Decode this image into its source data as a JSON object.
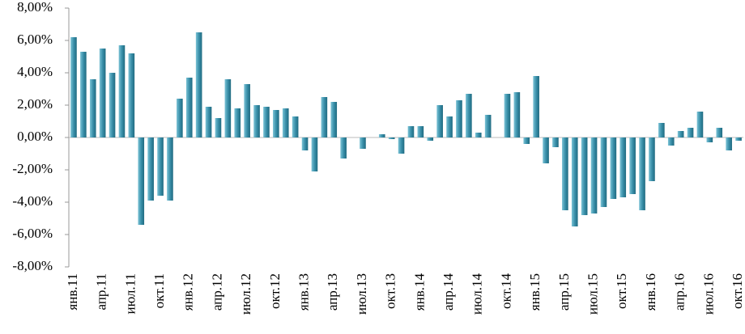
{
  "chart_data": {
    "type": "bar",
    "categories": [
      "янв.11",
      null,
      null,
      "апр.11",
      null,
      null,
      "июл.11",
      null,
      null,
      "окт.11",
      null,
      null,
      "янв.12",
      null,
      null,
      "апр.12",
      null,
      null,
      "июл.12",
      null,
      null,
      "окт.12",
      null,
      null,
      "янв.13",
      null,
      null,
      "апр.13",
      null,
      null,
      "июл.13",
      null,
      null,
      "окт.13",
      null,
      null,
      "янв.14",
      null,
      null,
      "апр.14",
      null,
      null,
      "июл.14",
      null,
      null,
      "окт.14",
      null,
      null,
      "янв.15",
      null,
      null,
      "апр.15",
      null,
      null,
      "июл.15",
      null,
      null,
      "окт.15",
      null,
      null,
      "янв.16",
      null,
      null,
      "апр.16",
      null,
      null,
      "июл.16",
      null,
      null,
      "окт.16"
    ],
    "values": [
      6.2,
      5.3,
      3.6,
      5.5,
      4.0,
      5.7,
      5.2,
      -5.4,
      -3.9,
      -3.6,
      -3.9,
      2.4,
      3.7,
      6.5,
      1.9,
      1.2,
      3.6,
      1.8,
      3.3,
      2.0,
      1.9,
      1.7,
      1.8,
      1.3,
      -0.8,
      -2.1,
      2.5,
      2.2,
      -1.3,
      0.0,
      -0.7,
      0.0,
      0.2,
      -0.1,
      -1.0,
      0.7,
      0.7,
      -0.2,
      2.0,
      1.3,
      2.3,
      2.7,
      0.3,
      1.4,
      0.0,
      2.7,
      2.8,
      -0.4,
      3.8,
      -1.6,
      -0.6,
      -4.5,
      -5.5,
      -4.8,
      -4.7,
      -4.3,
      -3.8,
      -3.7,
      -3.5,
      -4.5,
      -2.7,
      0.9,
      -0.5,
      0.4,
      0.6,
      1.6,
      -0.3,
      0.6,
      -0.8,
      -0.2
    ],
    "color": "#3a90aa",
    "ylim": [
      -8,
      8
    ],
    "yticks": [
      {
        "value": -8,
        "label": "-8,00%"
      },
      {
        "value": -6,
        "label": "-6,00%"
      },
      {
        "value": -4,
        "label": "-4,00%"
      },
      {
        "value": -2,
        "label": "-2,00%"
      },
      {
        "value": 0,
        "label": "0,00%"
      },
      {
        "value": 2,
        "label": "2,00%"
      },
      {
        "value": 4,
        "label": "4,00%"
      },
      {
        "value": 6,
        "label": "6,00%"
      },
      {
        "value": 8,
        "label": "8,00%"
      }
    ],
    "grid": false
  }
}
